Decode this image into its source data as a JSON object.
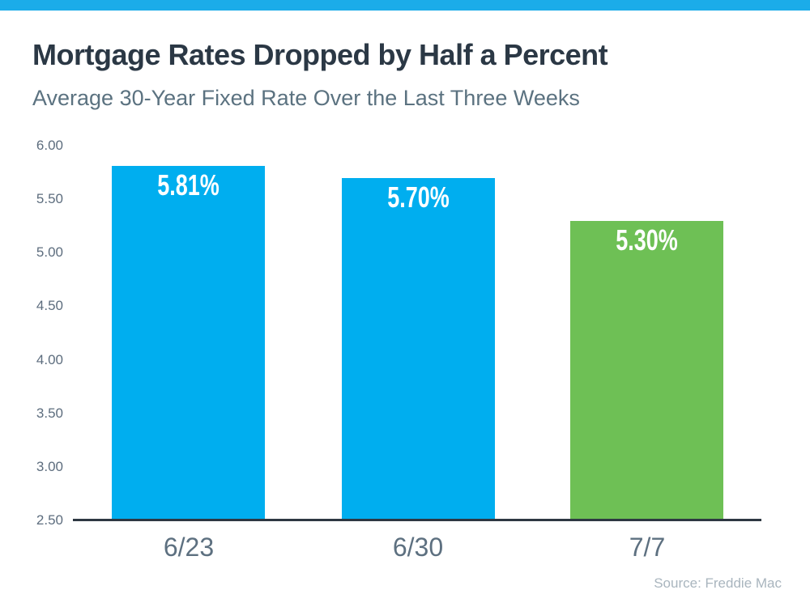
{
  "page": {
    "top_strip_color": "#1BACE9",
    "background_color": "#FFFFFF"
  },
  "chart_data": {
    "type": "bar",
    "title": "Mortgage Rates Dropped by Half a Percent",
    "subtitle": "Average 30-Year Fixed Rate Over the Last Three Weeks",
    "source": "Source: Freddie Mac",
    "categories": [
      "6/23",
      "6/30",
      "7/7"
    ],
    "values": [
      5.81,
      5.7,
      5.3
    ],
    "value_labels": [
      "5.81%",
      "5.70%",
      "5.30%"
    ],
    "bar_colors": [
      "#00AEEF",
      "#00AEEF",
      "#6EC055"
    ],
    "value_label_color": "#FFFFFF",
    "axis_line_color": "#2E3842",
    "tick_label_color": "#5D6D7E",
    "ylim": [
      2.5,
      6.0
    ],
    "ytick_step": 0.5,
    "yticks": [
      6.0,
      5.5,
      5.0,
      4.5,
      4.0,
      3.5,
      3.0,
      2.5
    ],
    "ytick_labels": [
      "6.00",
      "5.50",
      "5.00",
      "4.50",
      "4.00",
      "3.50",
      "3.00",
      "2.50"
    ],
    "grid": false,
    "legend": null,
    "xlabel": "",
    "ylabel": ""
  }
}
